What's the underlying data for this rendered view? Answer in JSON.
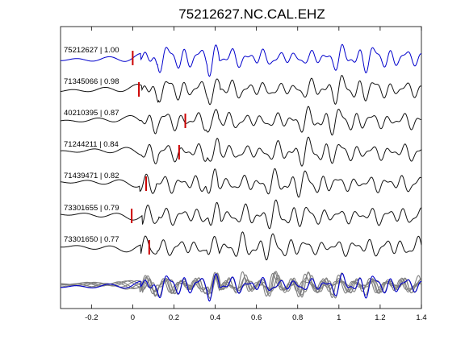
{
  "chart_data": {
    "type": "line",
    "title": "75212627.NC.CAL.EHZ",
    "xlim": [
      -0.35,
      1.4
    ],
    "x_ticks": [
      "-0.2",
      "0",
      "0.2",
      "0.4",
      "0.6",
      "0.8",
      "1",
      "1.2",
      "1.4"
    ],
    "x_tick_values": [
      -0.2,
      0,
      0.2,
      0.4,
      0.6,
      0.8,
      1.0,
      1.2,
      1.4
    ],
    "grid": false,
    "colors": {
      "reference": "#0000cc",
      "trace": "#111111",
      "overlay": "#808080",
      "pick": "#cc0000"
    },
    "traces": [
      {
        "label": "75212627 | 1.00",
        "pick_time": 0.0,
        "color": "reference",
        "shift": 0.0
      },
      {
        "label": "71345066 | 0.98",
        "pick_time": 0.03,
        "color": "trace",
        "shift": 0.005
      },
      {
        "label": "40210395 | 0.87",
        "pick_time": 0.255,
        "color": "trace",
        "shift": -0.004
      },
      {
        "label": "71244211 | 0.84",
        "pick_time": 0.225,
        "color": "trace",
        "shift": 0.003
      },
      {
        "label": "71439471 | 0.82",
        "pick_time": 0.065,
        "color": "trace",
        "shift": -0.006
      },
      {
        "label": "73301655 | 0.79",
        "pick_time": -0.005,
        "color": "trace",
        "shift": 0.006
      },
      {
        "label": "73301650 | 0.77",
        "pick_time": 0.08,
        "color": "trace",
        "shift": -0.002
      }
    ]
  }
}
